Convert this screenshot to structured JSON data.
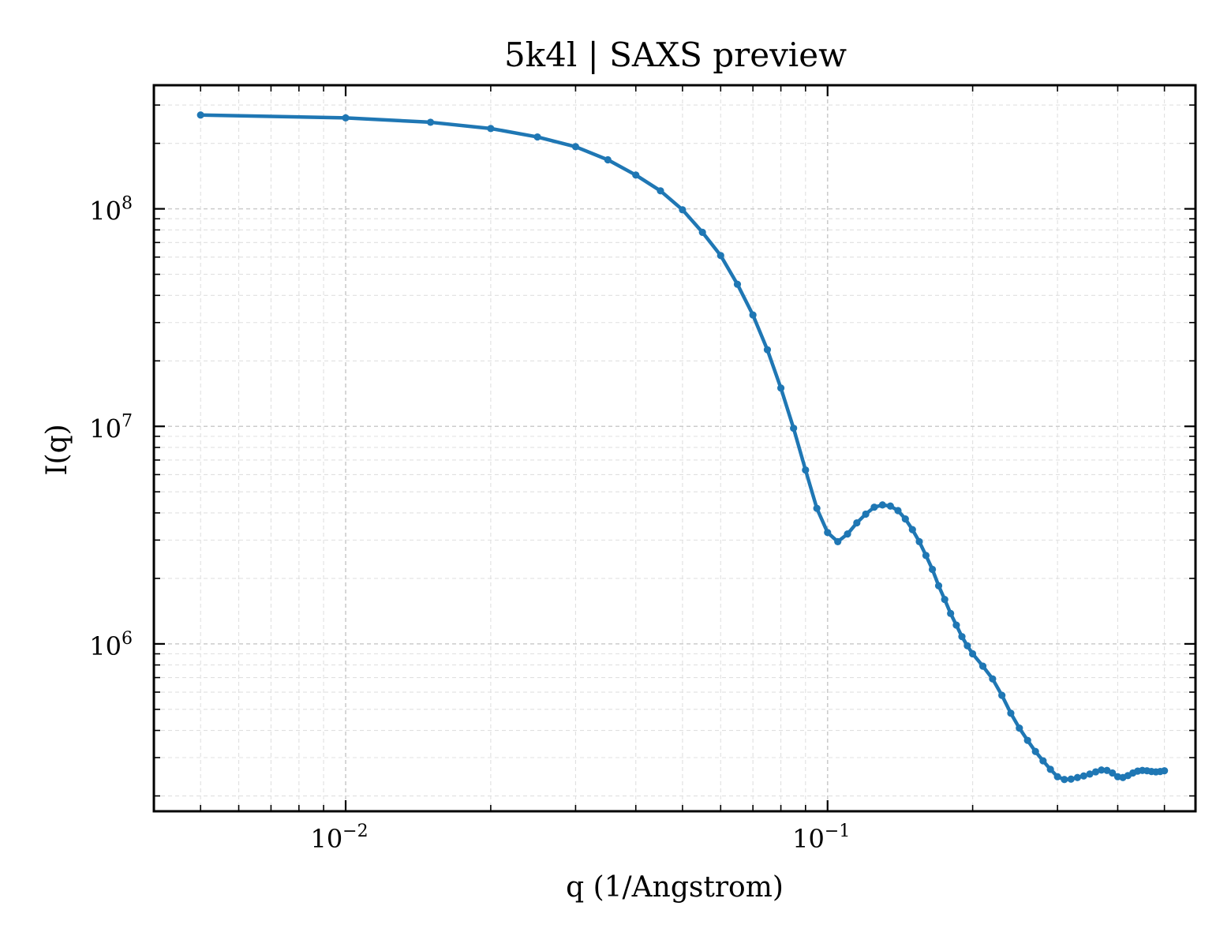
{
  "chart_data": {
    "type": "line",
    "title": "5k4l | SAXS preview",
    "xlabel": "q (1/Angstrom)",
    "ylabel": "I(q)",
    "xscale": "log",
    "yscale": "log",
    "xlim": [
      0.004,
      0.58
    ],
    "ylim": [
      170000,
      370000000
    ],
    "grid": true,
    "line_color": "#1f77b4",
    "x_ticks": [
      {
        "value": 0.01,
        "base": "10",
        "exponent": "−2"
      },
      {
        "value": 0.1,
        "base": "10",
        "exponent": "−1"
      }
    ],
    "y_ticks": [
      {
        "value": 1000000,
        "base": "10",
        "exponent": "6"
      },
      {
        "value": 10000000,
        "base": "10",
        "exponent": "7"
      },
      {
        "value": 100000000,
        "base": "10",
        "exponent": "8"
      }
    ],
    "series": [
      {
        "x": [
          0.005,
          0.01,
          0.015,
          0.02,
          0.025,
          0.03,
          0.035,
          0.04,
          0.045,
          0.05,
          0.055,
          0.06,
          0.065,
          0.07,
          0.075,
          0.08,
          0.085,
          0.09,
          0.095,
          0.1,
          0.105,
          0.11,
          0.115,
          0.12,
          0.125,
          0.13,
          0.135,
          0.14,
          0.145,
          0.15,
          0.155,
          0.16,
          0.165,
          0.17,
          0.175,
          0.18,
          0.185,
          0.19,
          0.195,
          0.2,
          0.21,
          0.22,
          0.23,
          0.24,
          0.25,
          0.26,
          0.27,
          0.28,
          0.29,
          0.3,
          0.31,
          0.32,
          0.33,
          0.34,
          0.35,
          0.36,
          0.37,
          0.38,
          0.39,
          0.4,
          0.41,
          0.42,
          0.43,
          0.44,
          0.45,
          0.46,
          0.47,
          0.48,
          0.49,
          0.5
        ],
        "y": [
          270000000,
          262000000,
          250000000,
          234000000,
          214000000,
          193000000,
          168000000,
          143000000,
          121000000,
          99000000,
          78000000,
          61000000,
          45000000,
          32500000,
          22500000,
          15000000,
          9800000,
          6300000,
          4200000,
          3250000,
          2950000,
          3200000,
          3600000,
          3950000,
          4250000,
          4350000,
          4300000,
          4100000,
          3750000,
          3350000,
          2950000,
          2550000,
          2200000,
          1850000,
          1600000,
          1380000,
          1220000,
          1080000,
          980000,
          900000,
          790000,
          690000,
          580000,
          480000,
          410000,
          360000,
          320000,
          290000,
          265000,
          245000,
          238000,
          239000,
          243000,
          247000,
          252000,
          258000,
          263000,
          262000,
          255000,
          245000,
          243000,
          248000,
          255000,
          260000,
          262000,
          261000,
          259000,
          258000,
          259000,
          261000
        ]
      }
    ]
  }
}
